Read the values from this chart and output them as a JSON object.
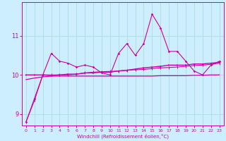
{
  "xlabel": "Windchill (Refroidissement éolien,°C)",
  "bg_color": "#cceeff",
  "grid_color": "#aadddd",
  "line_color": "#cc00aa",
  "x": [
    0,
    1,
    2,
    3,
    4,
    5,
    6,
    7,
    8,
    9,
    10,
    11,
    12,
    13,
    14,
    15,
    16,
    17,
    18,
    19,
    20,
    21,
    22,
    23
  ],
  "line1": [
    8.8,
    9.4,
    10.0,
    10.55,
    10.35,
    10.3,
    10.2,
    10.25,
    10.2,
    10.05,
    10.0,
    10.55,
    10.8,
    10.5,
    10.8,
    11.55,
    11.2,
    10.6,
    10.6,
    10.35,
    10.1,
    10.0,
    10.25,
    10.35
  ],
  "line2": [
    10.0,
    10.0,
    10.0,
    9.98,
    10.0,
    10.02,
    10.02,
    10.05,
    10.05,
    10.07,
    10.07,
    10.1,
    10.12,
    10.15,
    10.18,
    10.2,
    10.22,
    10.25,
    10.25,
    10.25,
    10.28,
    10.28,
    10.3,
    10.32
  ],
  "line3": [
    9.88,
    9.92,
    9.95,
    9.97,
    9.97,
    9.97,
    9.97,
    9.97,
    9.97,
    9.97,
    9.97,
    9.97,
    9.97,
    9.97,
    9.97,
    9.97,
    9.98,
    9.98,
    9.98,
    9.98,
    9.99,
    9.99,
    10.0,
    10.0
  ],
  "line4": [
    8.8,
    9.35,
    10.0,
    10.0,
    10.0,
    10.0,
    10.02,
    10.05,
    10.07,
    10.08,
    10.09,
    10.1,
    10.12,
    10.13,
    10.14,
    10.16,
    10.18,
    10.19,
    10.2,
    10.22,
    10.24,
    10.25,
    10.27,
    10.3
  ],
  "ylim": [
    8.7,
    11.85
  ],
  "yticks": [
    9,
    10,
    11
  ],
  "xticks": [
    0,
    1,
    2,
    3,
    4,
    5,
    6,
    7,
    8,
    9,
    10,
    11,
    12,
    13,
    14,
    15,
    16,
    17,
    18,
    19,
    20,
    21,
    22,
    23
  ]
}
